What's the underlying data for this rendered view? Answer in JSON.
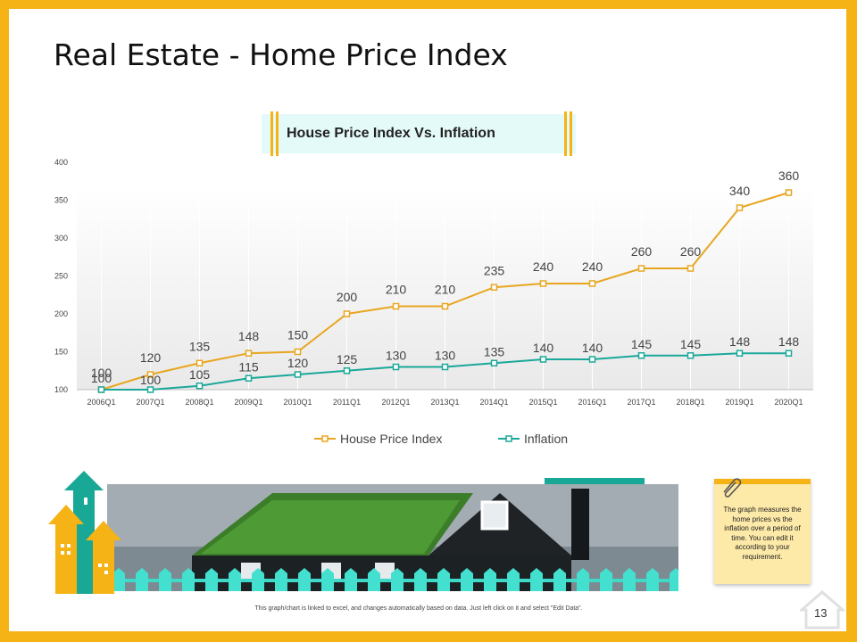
{
  "slide": {
    "title": "Real Estate - Home Price Index",
    "footer_note": "This graph/chart is linked to excel, and changes automatically based on data. Just left click on it and select \"Edit Data\".",
    "page_number": "13"
  },
  "note": {
    "text": "The graph measures the home prices vs the inflation over a period of time. You can edit it according to your requirement."
  },
  "colors": {
    "accent": "#f5b316",
    "teal": "#19a796",
    "house_price_line": "#e8a620",
    "inflation_line": "#1ba89a"
  },
  "icons": [
    "paperclip-icon",
    "home-icon",
    "arrow-building-icon"
  ],
  "chart_data": {
    "type": "line",
    "title": "House Price Index Vs. Inflation",
    "categories": [
      "2006Q1",
      "2007Q1",
      "2008Q1",
      "2009Q1",
      "2010Q1",
      "2011Q1",
      "2012Q1",
      "2013Q1",
      "2014Q1",
      "2015Q1",
      "2016Q1",
      "2017Q1",
      "2018Q1",
      "2019Q1",
      "2020Q1"
    ],
    "series": [
      {
        "name": "House Price Index",
        "color": "#e8a620",
        "values": [
          100,
          120,
          135,
          148,
          150,
          200,
          210,
          210,
          235,
          240,
          240,
          260,
          260,
          340,
          360
        ]
      },
      {
        "name": "Inflation",
        "color": "#1ba89a",
        "values": [
          100,
          100,
          105,
          115,
          120,
          125,
          130,
          130,
          135,
          140,
          140,
          145,
          145,
          148,
          148
        ]
      }
    ],
    "ylim": [
      100,
      400
    ],
    "yticks": [
      "100",
      "150",
      "200",
      "250",
      "300",
      "350",
      "400"
    ],
    "xlabel": "",
    "ylabel": "",
    "grid": "vertical",
    "legend": "bottom"
  }
}
